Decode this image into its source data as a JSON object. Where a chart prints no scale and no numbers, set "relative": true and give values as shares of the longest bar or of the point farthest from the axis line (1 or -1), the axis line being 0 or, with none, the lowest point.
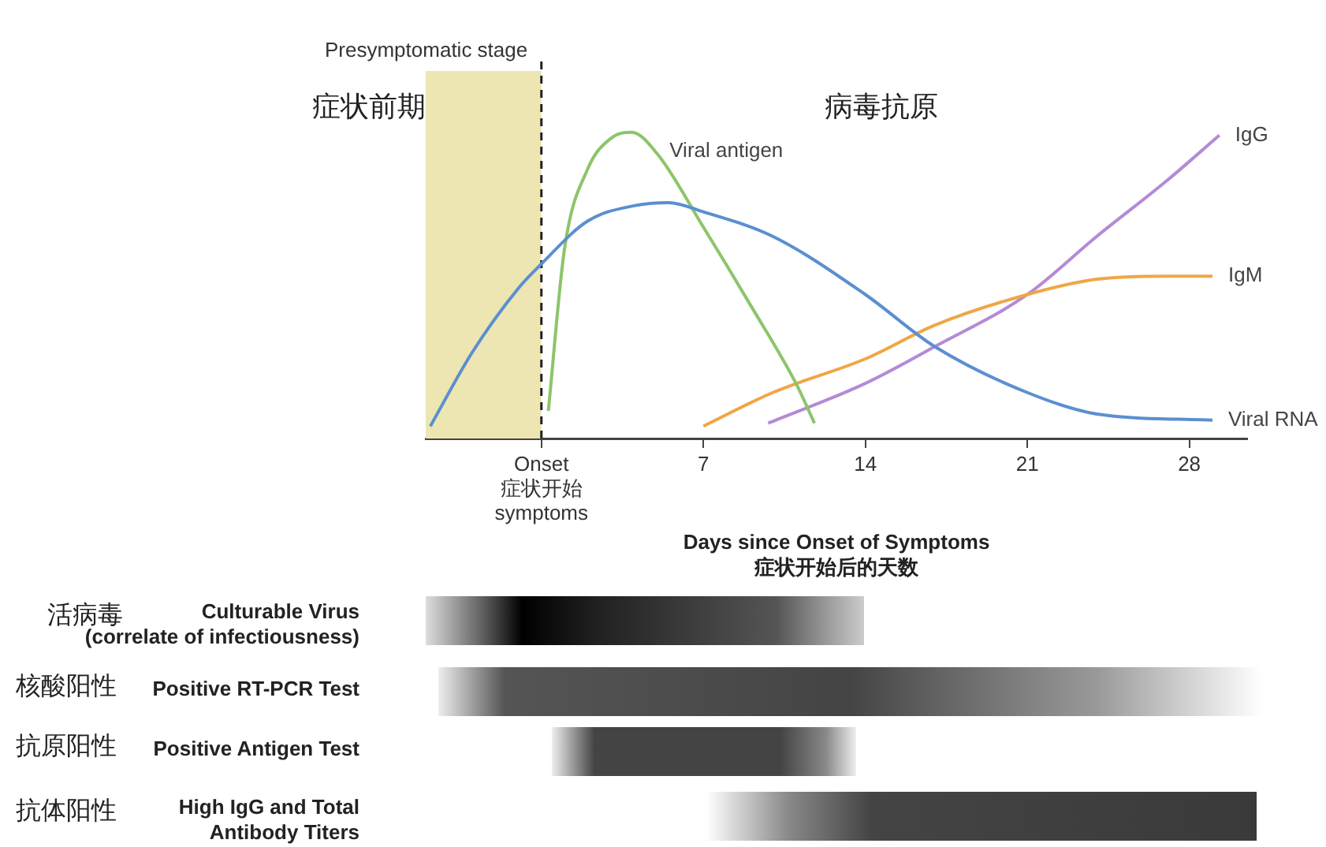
{
  "chart_data": {
    "type": "line",
    "relative": true,
    "xlabel": "Days since Onset of Symptoms\n症状开始后的天数",
    "xlim": [
      -5,
      30.5
    ],
    "xticks": [
      {
        "value": 0,
        "label": "Onset\n症状开始\nsymptoms"
      },
      7,
      14,
      21,
      28
    ],
    "grid": false,
    "legend": false,
    "marker": "none",
    "line_style": "solid",
    "series": [
      {
        "name": "Viral RNA",
        "color": "#5b8fd0",
        "x": [
          -4.8,
          -3,
          -1,
          0,
          2,
          4,
          5.5,
          7,
          10,
          14,
          17,
          21,
          24,
          29
        ],
        "values": [
          0.04,
          0.28,
          0.49,
          0.57,
          0.71,
          0.76,
          0.77,
          0.74,
          0.66,
          0.47,
          0.3,
          0.15,
          0.08,
          0.06
        ]
      },
      {
        "name": "Viral antigen",
        "color": "#8cc56a",
        "x": [
          0.3,
          1,
          2,
          3,
          3.9,
          5,
          7,
          9,
          11,
          11.8
        ],
        "values": [
          0.09,
          0.62,
          0.88,
          0.98,
          1,
          0.93,
          0.69,
          0.44,
          0.18,
          0.05
        ]
      },
      {
        "name": "IgM",
        "color": "#f0a646",
        "x": [
          7,
          10,
          14,
          17,
          21,
          24,
          27,
          29
        ],
        "values": [
          0.04,
          0.15,
          0.26,
          0.37,
          0.47,
          0.52,
          0.53,
          0.53
        ]
      },
      {
        "name": "IgG",
        "color": "#b48ad6",
        "x": [
          9.8,
          14,
          17,
          21,
          24,
          27,
          29.3
        ],
        "values": [
          0.05,
          0.18,
          0.3,
          0.47,
          0.66,
          0.84,
          0.99
        ]
      }
    ],
    "bands": [
      {
        "axis": "x",
        "from": -5,
        "to": 0,
        "label": "Presymptomatic stage",
        "color": "#ede6b3"
      }
    ],
    "ref_lines": [
      {
        "axis": "x",
        "value": 0,
        "color": "#222222",
        "line_style": "dashed"
      }
    ],
    "annotations": [
      "症状前期",
      "病毒抗原",
      "活病毒",
      "Culturable Virus\n(correlate of infectiousness)",
      "核酸阳性",
      "Positive RT-PCR Test",
      "抗原阳性",
      "Positive Antigen Test",
      "抗体阳性",
      "High IgG and Total\nAntibody Titers"
    ]
  }
}
